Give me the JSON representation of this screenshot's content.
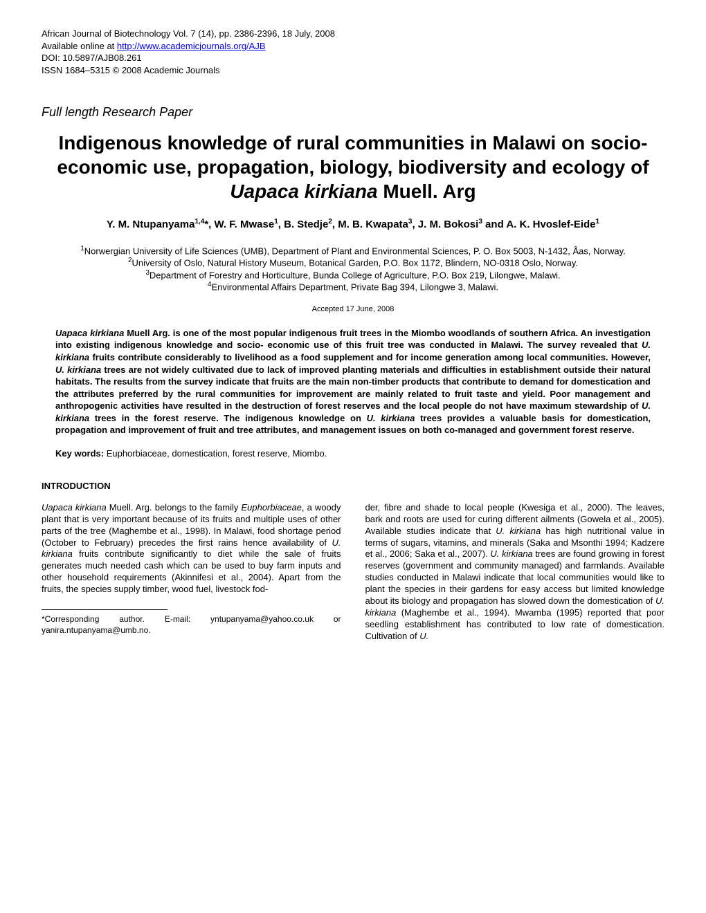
{
  "header": {
    "journal_line": "African Journal of Biotechnology Vol. 7 (14), pp. 2386-2396, 18 July, 2008",
    "online_prefix": "Available online at ",
    "online_url": "http://www.academicjournals.org/AJB",
    "doi": "DOI: 10.5897/AJB08.261",
    "issn": "ISSN 1684–5315 © 2008 Academic Journals"
  },
  "paper_type": "Full length Research Paper",
  "title": {
    "part1": "Indigenous knowledge of rural communities in Malawi on socio-economic use, propagation, biology, biodiversity and ecology of ",
    "species": "Uapaca kirkiana",
    "part2": " Muell. Arg"
  },
  "authors_html": "Y. M. Ntupanyama<sup>1,4</sup>*, W. F. Mwase<sup>1</sup>, B. Stedje<sup>2</sup>, M. B. Kwapata<sup>3</sup>, J. M. Bokosi<sup>3</sup> and A. K. Hvoslef-Eide<sup>1</sup>",
  "affiliations": [
    "<sup>1</sup>Norwergian University of Life Sciences (UMB), Department of Plant and Environmental Sciences, P. O. Box 5003, N-1432, Åas, Norway.",
    "<sup>2</sup>University of Oslo, Natural History Museum, Botanical Garden, P.O. Box 1172, Blindern, NO-0318 Oslo, Norway.",
    "<sup>3</sup>Department of Forestry and Horticulture, Bunda College of Agriculture, P.O. Box 219, Lilongwe, Malawi.",
    "<sup>4</sup>Environmental Affairs Department, Private Bag 394, Lilongwe 3, Malawi."
  ],
  "accepted": "Accepted 17 June, 2008",
  "abstract": "<span class=\"species\">Uapaca kirkiana</span> Muell Arg. is one of the most popular indigenous fruit trees in the Miombo woodlands of southern Africa. An investigation into existing indigenous knowledge and socio- economic use of this fruit tree was conducted in Malawi. The survey revealed that <span class=\"species\">U. kirkiana</span> fruits contribute considerably to livelihood as a food supplement and for income generation among local communities. However, <span class=\"species\">U. kirkiana</span> trees are not widely cultivated due to lack of improved planting materials and difficulties in establishment outside their natural habitats. The results from the survey indicate that fruits are the main non-timber products that contribute to demand for domestication and the attributes preferred by the rural communities for improvement are mainly related to fruit taste and yield. Poor management and anthropogenic activities have resulted in the destruction of forest reserves and the local people do not have maximum stewardship of <span class=\"species\">U. kirkiana</span> trees in the forest reserve. The indigenous knowledge on <span class=\"species\">U. kirkiana</span> trees provides a valuable basis for domestication, propagation and improvement of fruit and tree attributes, and management issues on both co-managed and government forest reserve.",
  "keywords_label": "Key words:",
  "keywords_text": " Euphorbiaceae, domestication, forest reserve, Miombo.",
  "intro_heading": "INTRODUCTION",
  "col1": "<span class=\"species\">Uapaca kirkiana</span> Muell. Arg. belongs to the family <span class=\"species\">Euphorbiaceae</span>, a woody plant that is very important because of its fruits and multiple uses of other parts of the tree (Maghembe et al., 1998). In Malawi, food shortage period (October to February) precedes the first rains hence availability of <span class=\"species\">U. kirkiana</span> fruits contribute significantly to diet while the sale of fruits generates much needed cash which can be used to buy farm inputs and other household requirements (Akinnifesi et al., 2004). Apart from the fruits, the species supply timber, wood fuel, livestock fod-",
  "col2": "der, fibre and shade to local people (Kwesiga et al., 2000). The leaves, bark and roots are used for curing different ailments (Gowela et al., 2005). Available studies indicate that <span class=\"species\">U. kirkiana</span> has high nutritional value in terms of sugars, vitamins, and minerals (Saka and Msonthi 1994; Kadzere et al., 2006; Saka et al., 2007). <span class=\"species\">U. kirkiana</span> trees are found growing in forest reserves (government and community managed) and farmlands. Available studies conducted in Malawi indicate that local communities would like to plant the species in their gardens for easy access but limited knowledge about its biology and propagation has slowed down the domestication of <span class=\"species\">U. kirkiana</span> (Maghembe et al., 1994). Mwamba (1995) reported that poor seedling establishment has contributed to low rate of domestication. Cultivation of <span class=\"species\">U.</span>",
  "corresponding": "*Corresponding author. E-mail: yntupanyama@yahoo.co.uk or yanira.ntupanyama@umb.no."
}
